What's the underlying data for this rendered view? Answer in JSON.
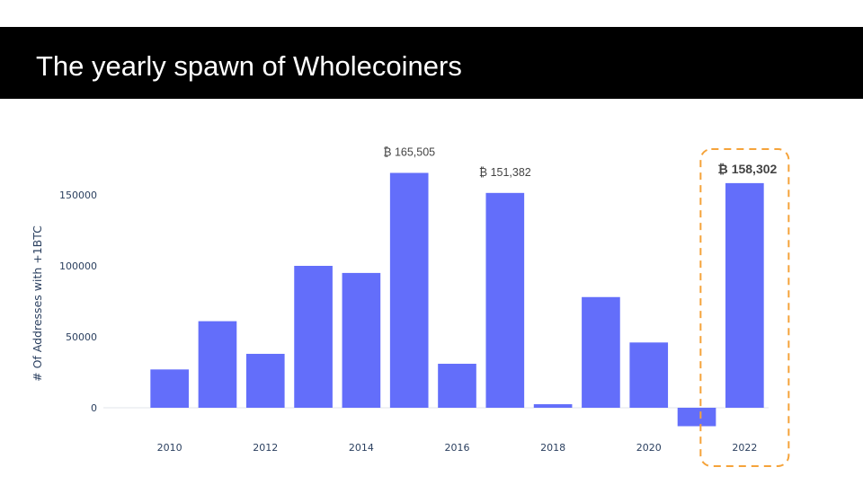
{
  "slide": {
    "title": "The yearly spawn of Wholecoiners"
  },
  "colors": {
    "bar": "#636efa",
    "highlight_box": "#f5a33a",
    "title_bar": "#000000"
  },
  "chart_data": {
    "type": "bar",
    "x": [
      2010,
      2011,
      2012,
      2013,
      2014,
      2015,
      2016,
      2017,
      2018,
      2019,
      2020,
      2021,
      2022
    ],
    "values": [
      27000,
      61000,
      38000,
      100000,
      95000,
      165505,
      31000,
      151382,
      2500,
      78000,
      46000,
      -13000,
      158302
    ],
    "xticks": [
      "2010",
      "2012",
      "2014",
      "2016",
      "2018",
      "2020",
      "2022"
    ],
    "yticks": [
      "0",
      "50000",
      "100000",
      "150000"
    ],
    "ylabel": "# Of Addresses with +1BTC",
    "xlabel": "",
    "ylim": [
      -20000,
      170000
    ],
    "grid": false,
    "annotations": [
      {
        "x": 2015,
        "text": "₿ 165,505"
      },
      {
        "x": 2017,
        "text": "₿ 151,382"
      },
      {
        "x": 2022,
        "text": "₿ 158,302",
        "emphasis": true
      }
    ],
    "highlight": {
      "x": 2022,
      "style": "dashed box"
    }
  }
}
